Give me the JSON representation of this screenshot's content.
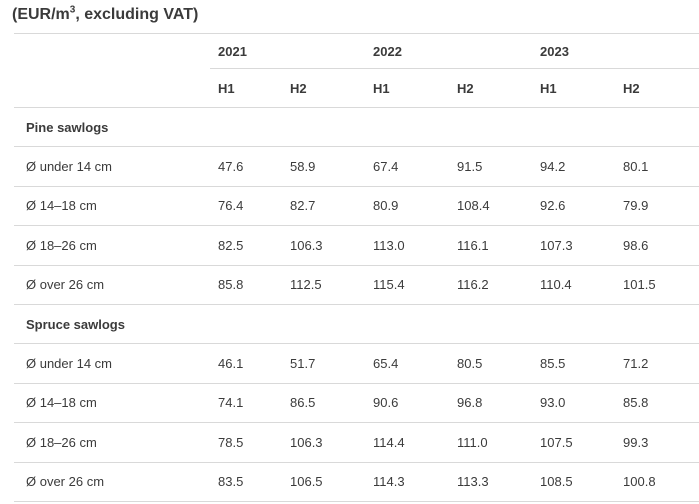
{
  "title": {
    "prefix": "(EUR/m",
    "superscript": "3",
    "suffix": ", excluding VAT)"
  },
  "colors": {
    "text": "#3b3b3b",
    "border": "#d9d9d9",
    "background": "#ffffff"
  },
  "chart_data": {
    "type": "table",
    "title": "(EUR/m³, excluding VAT)",
    "years": [
      "2021",
      "2022",
      "2023"
    ],
    "half_headers": [
      "H1",
      "H2",
      "H1",
      "H2",
      "H1",
      "H2"
    ],
    "columns": [
      "2021 H1",
      "2021 H2",
      "2022 H1",
      "2022 H2",
      "2023 H1",
      "2023 H2"
    ],
    "sections": [
      {
        "label": "Pine sawlogs",
        "rows": [
          {
            "label": "Ø under 14 cm",
            "values": [
              "47.6",
              "58.9",
              "67.4",
              "91.5",
              "94.2",
              "80.1"
            ]
          },
          {
            "label": "Ø 14–18 cm",
            "values": [
              "76.4",
              "82.7",
              "80.9",
              "108.4",
              "92.6",
              "79.9"
            ]
          },
          {
            "label": "Ø 18–26 cm",
            "values": [
              "82.5",
              "106.3",
              "113.0",
              "116.1",
              "107.3",
              "98.6"
            ]
          },
          {
            "label": "Ø over 26 cm",
            "values": [
              "85.8",
              "112.5",
              "115.4",
              "116.2",
              "110.4",
              "101.5"
            ]
          }
        ]
      },
      {
        "label": "Spruce sawlogs",
        "rows": [
          {
            "label": "Ø under 14 cm",
            "values": [
              "46.1",
              "51.7",
              "65.4",
              "80.5",
              "85.5",
              "71.2"
            ]
          },
          {
            "label": "Ø 14–18 cm",
            "values": [
              "74.1",
              "86.5",
              "90.6",
              "96.8",
              "93.0",
              "85.8"
            ]
          },
          {
            "label": "Ø 18–26 cm",
            "values": [
              "78.5",
              "106.3",
              "114.4",
              "111.0",
              "107.5",
              "99.3"
            ]
          },
          {
            "label": "Ø over 26 cm",
            "values": [
              "83.5",
              "106.5",
              "114.3",
              "113.3",
              "108.5",
              "100.8"
            ]
          }
        ]
      }
    ]
  }
}
